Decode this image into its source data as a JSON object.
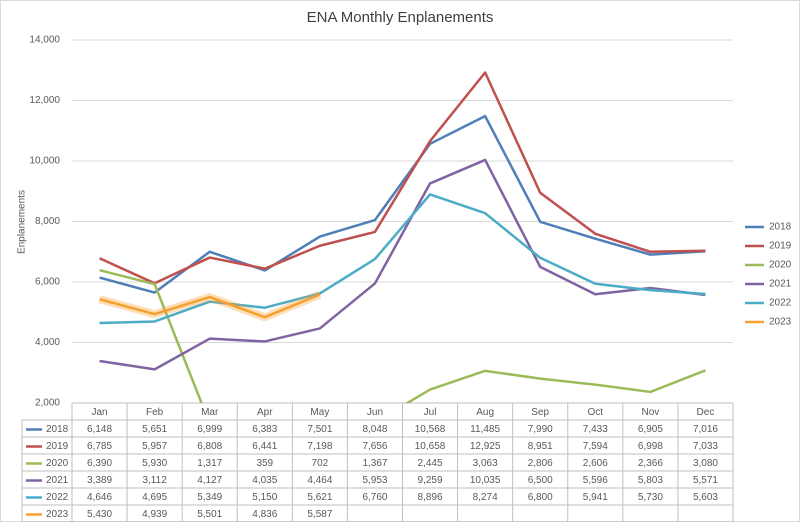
{
  "chart_data": {
    "type": "line",
    "title": "ENA Monthly Enplanements",
    "y_label": "Enplanements",
    "categories": [
      "Jan",
      "Feb",
      "Mar",
      "Apr",
      "May",
      "Jun",
      "Jul",
      "Aug",
      "Sep",
      "Oct",
      "Nov",
      "Dec"
    ],
    "ylim": [
      2000,
      14000
    ],
    "yticks": [
      {
        "value": 2000,
        "label": "2,000"
      },
      {
        "value": 4000,
        "label": "4,000"
      },
      {
        "value": 6000,
        "label": "6,000"
      },
      {
        "value": 8000,
        "label": "8,000"
      },
      {
        "value": 10000,
        "label": "10,000"
      },
      {
        "value": 12000,
        "label": "12,000"
      },
      {
        "value": 14000,
        "label": "14,000"
      }
    ],
    "grid": true,
    "legend": "right",
    "series": [
      {
        "name": "2018",
        "color": "#4f7fb8",
        "values": [
          6148,
          5651,
          6999,
          6383,
          7501,
          8048,
          10568,
          11485,
          7990,
          7433,
          6905,
          7016
        ],
        "value_labels": [
          "6,148",
          "5,651",
          "6,999",
          "6,383",
          "7,501",
          "8,048",
          "10,568",
          "11,485",
          "7,990",
          "7,433",
          "6,905",
          "7,016"
        ]
      },
      {
        "name": "2019",
        "color": "#c0504d",
        "values": [
          6785,
          5957,
          6808,
          6441,
          7198,
          7656,
          10658,
          12925,
          8951,
          7594,
          6998,
          7033
        ],
        "value_labels": [
          "6,785",
          "5,957",
          "6,808",
          "6,441",
          "7,198",
          "7,656",
          "10,658",
          "12,925",
          "8,951",
          "7,594",
          "6,998",
          "7,033"
        ]
      },
      {
        "name": "2020",
        "color": "#9bbb59",
        "values": [
          6390,
          5930,
          1317,
          359,
          702,
          1367,
          2445,
          3063,
          2806,
          2606,
          2366,
          3080
        ],
        "value_labels": [
          "6,390",
          "5,930",
          "1,317",
          "359",
          "702",
          "1,367",
          "2,445",
          "3,063",
          "2,806",
          "2,606",
          "2,366",
          "3,080"
        ]
      },
      {
        "name": "2021",
        "color": "#8064a2",
        "values": [
          3389,
          3112,
          4127,
          4035,
          4464,
          5953,
          9259,
          10035,
          6500,
          5596,
          5803,
          5571
        ],
        "value_labels": [
          "3,389",
          "3,112",
          "4,127",
          "4,035",
          "4,464",
          "5,953",
          "9,259",
          "10,035",
          "6,500",
          "5,596",
          "5,803",
          "5,571"
        ]
      },
      {
        "name": "2022",
        "color": "#4bacc6",
        "values": [
          4646,
          4695,
          5349,
          5150,
          5621,
          6760,
          8896,
          8274,
          6800,
          5941,
          5730,
          5603
        ],
        "value_labels": [
          "4,646",
          "4,695",
          "5,349",
          "5,150",
          "5,621",
          "6,760",
          "8,896",
          "8,274",
          "6,800",
          "5,941",
          "5,730",
          "5,603"
        ]
      },
      {
        "name": "2023",
        "color": "#f7a030",
        "values": [
          5430,
          4939,
          5501,
          4836,
          5587,
          null,
          null,
          null,
          null,
          null,
          null,
          null
        ],
        "value_labels": [
          "5,430",
          "4,939",
          "5,501",
          "4,836",
          "5,587",
          null,
          null,
          null,
          null,
          null,
          null,
          null
        ]
      }
    ]
  }
}
